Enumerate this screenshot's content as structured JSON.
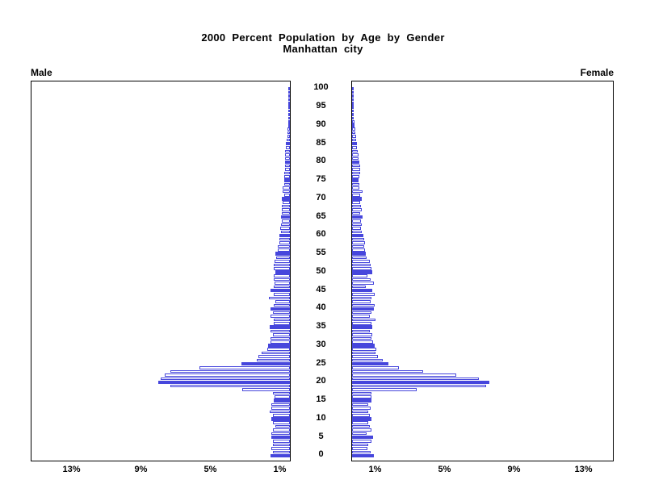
{
  "title": {
    "line1": "2000 Percent Population by Age by Gender",
    "line2": "Manhattan city"
  },
  "panel_labels": {
    "left": "Male",
    "right": "Female"
  },
  "colors": {
    "bar_blue": "#4646DC",
    "axis_black": "#000000",
    "background": "#FFFFFF"
  },
  "chart_data": {
    "type": "bar",
    "variant": "population_pyramid",
    "title": "2000 Percent Population by Age by Gender",
    "subtitle": "Manhattan city",
    "orientation": "horizontal, mirrored; Male bars grow leftward, Female bars grow rightward",
    "age_min": 0,
    "age_max": 100,
    "age_axis_ticks": [
      0,
      5,
      10,
      15,
      20,
      25,
      30,
      35,
      40,
      45,
      50,
      55,
      60,
      65,
      70,
      75,
      80,
      85,
      90,
      95,
      100
    ],
    "x_ticks": {
      "values": [
        1,
        5,
        9,
        13
      ],
      "labels": [
        "1%",
        "5%",
        "9%",
        "13%"
      ]
    },
    "x_axis_max_percent": 15,
    "filled_bar_rule": "bars at ages divisible by 5 are solid blue; other ages are white with blue outline",
    "series": [
      {
        "name": "Male",
        "side": "left",
        "values": [
          1.1,
          1.0,
          1.05,
          1.0,
          1.0,
          1.05,
          1.05,
          1.0,
          0.85,
          1.0,
          1.05,
          1.0,
          1.15,
          1.05,
          1.05,
          0.95,
          0.9,
          1.0,
          2.75,
          6.9,
          7.6,
          7.45,
          7.2,
          6.9,
          5.2,
          2.8,
          1.9,
          1.8,
          1.65,
          1.3,
          1.25,
          1.1,
          1.1,
          1.0,
          1.1,
          1.15,
          0.95,
          0.95,
          1.1,
          1.0,
          1.1,
          0.95,
          0.85,
          1.2,
          0.95,
          1.1,
          0.95,
          0.9,
          0.95,
          0.95,
          0.85,
          0.95,
          0.95,
          0.9,
          0.8,
          0.85,
          0.7,
          0.7,
          0.6,
          0.6,
          0.6,
          0.5,
          0.55,
          0.5,
          0.45,
          0.5,
          0.45,
          0.45,
          0.45,
          0.4,
          0.45,
          0.35,
          0.4,
          0.4,
          0.35,
          0.35,
          0.35,
          0.35,
          0.3,
          0.3,
          0.3,
          0.28,
          0.26,
          0.26,
          0.22,
          0.22,
          0.18,
          0.16,
          0.15,
          0.12,
          0.1,
          0.08,
          0.08,
          0.06,
          0.05,
          0.05,
          0.03,
          0.03,
          0.02,
          0.02,
          0.02
        ]
      },
      {
        "name": "Female",
        "side": "right",
        "values": [
          1.25,
          1.05,
          0.9,
          0.95,
          1.1,
          1.2,
          0.85,
          1.1,
          1.0,
          0.95,
          1.1,
          1.0,
          0.95,
          1.05,
          0.95,
          1.1,
          1.1,
          1.1,
          3.7,
          7.7,
          7.9,
          7.3,
          6.0,
          4.1,
          2.7,
          2.1,
          1.75,
          1.5,
          1.35,
          1.4,
          1.3,
          1.2,
          1.1,
          1.15,
          1.0,
          1.15,
          1.1,
          1.35,
          1.0,
          1.1,
          1.25,
          1.3,
          1.05,
          1.1,
          1.3,
          1.15,
          0.8,
          1.25,
          1.05,
          0.9,
          1.15,
          1.1,
          1.05,
          1.0,
          0.85,
          0.8,
          0.75,
          0.7,
          0.75,
          0.7,
          0.65,
          0.55,
          0.5,
          0.55,
          0.5,
          0.6,
          0.45,
          0.55,
          0.5,
          0.45,
          0.55,
          0.45,
          0.6,
          0.42,
          0.4,
          0.36,
          0.42,
          0.45,
          0.47,
          0.44,
          0.42,
          0.38,
          0.35,
          0.31,
          0.29,
          0.27,
          0.24,
          0.22,
          0.2,
          0.18,
          0.16,
          0.13,
          0.11,
          0.1,
          0.09,
          0.08,
          0.06,
          0.05,
          0.04,
          0.03,
          0.03
        ]
      }
    ]
  }
}
